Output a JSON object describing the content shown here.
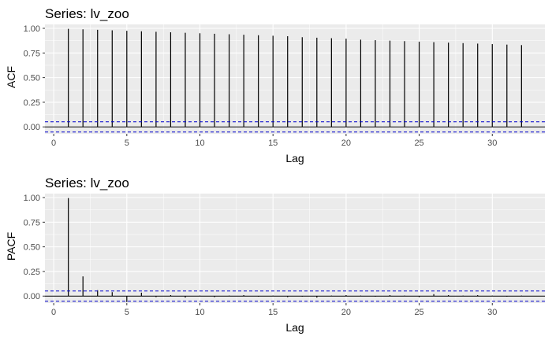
{
  "chart_data": [
    {
      "type": "bar",
      "title": "Series: lv_zoo",
      "xlabel": "Lag",
      "ylabel": "ACF",
      "xlim": [
        -0.6,
        33.6
      ],
      "ylim": [
        -0.07,
        1.04
      ],
      "xticks": [
        0,
        5,
        10,
        15,
        20,
        25,
        30
      ],
      "yticks": [
        0.0,
        0.25,
        0.5,
        0.75,
        1.0
      ],
      "ytick_labels": [
        "0.00",
        "0.25",
        "0.50",
        "0.75",
        "1.00"
      ],
      "lags": [
        1,
        2,
        3,
        4,
        5,
        6,
        7,
        8,
        9,
        10,
        11,
        12,
        13,
        14,
        15,
        16,
        17,
        18,
        19,
        20,
        21,
        22,
        23,
        24,
        25,
        26,
        27,
        28,
        29,
        30,
        31,
        32
      ],
      "values": [
        0.995,
        0.99,
        0.985,
        0.98,
        0.975,
        0.97,
        0.965,
        0.96,
        0.955,
        0.95,
        0.945,
        0.94,
        0.935,
        0.93,
        0.925,
        0.92,
        0.91,
        0.905,
        0.9,
        0.895,
        0.885,
        0.88,
        0.875,
        0.87,
        0.865,
        0.86,
        0.855,
        0.85,
        0.845,
        0.84,
        0.835,
        0.83
      ],
      "confidence_limits": [
        0.052,
        -0.052
      ],
      "grid": true
    },
    {
      "type": "bar",
      "title": "Series: lv_zoo",
      "xlabel": "Lag",
      "ylabel": "PACF",
      "xlim": [
        -0.6,
        33.6
      ],
      "ylim": [
        -0.07,
        1.04
      ],
      "xticks": [
        0,
        5,
        10,
        15,
        20,
        25,
        30
      ],
      "yticks": [
        0.0,
        0.25,
        0.5,
        0.75,
        1.0
      ],
      "ytick_labels": [
        "0.00",
        "0.25",
        "0.50",
        "0.75",
        "1.00"
      ],
      "lags": [
        1,
        2,
        3,
        4,
        5,
        6,
        7,
        8,
        9,
        10,
        11,
        12,
        13,
        14,
        15,
        16,
        17,
        18,
        19,
        20,
        21,
        22,
        23,
        24,
        25,
        26,
        27,
        28,
        29,
        30,
        31,
        32
      ],
      "values": [
        0.995,
        0.2,
        0.06,
        0.04,
        -0.06,
        0.035,
        -0.01,
        0.01,
        -0.015,
        0.005,
        -0.01,
        0.005,
        0.01,
        -0.005,
        0.005,
        -0.01,
        -0.005,
        -0.015,
        0.005,
        0.01,
        0.005,
        -0.005,
        0.01,
        0.005,
        -0.01,
        0.02,
        0.01,
        0.005,
        0.01,
        0.005,
        -0.005,
        0.005
      ],
      "confidence_limits": [
        0.052,
        -0.052
      ],
      "grid": true
    }
  ],
  "colors": {
    "panel_background": "#ebebeb",
    "grid_major": "#ffffff",
    "bar": "#000000",
    "zero_line": "#000000",
    "confidence_band": "#0000cc",
    "tick_text": "#4d4d4d"
  }
}
